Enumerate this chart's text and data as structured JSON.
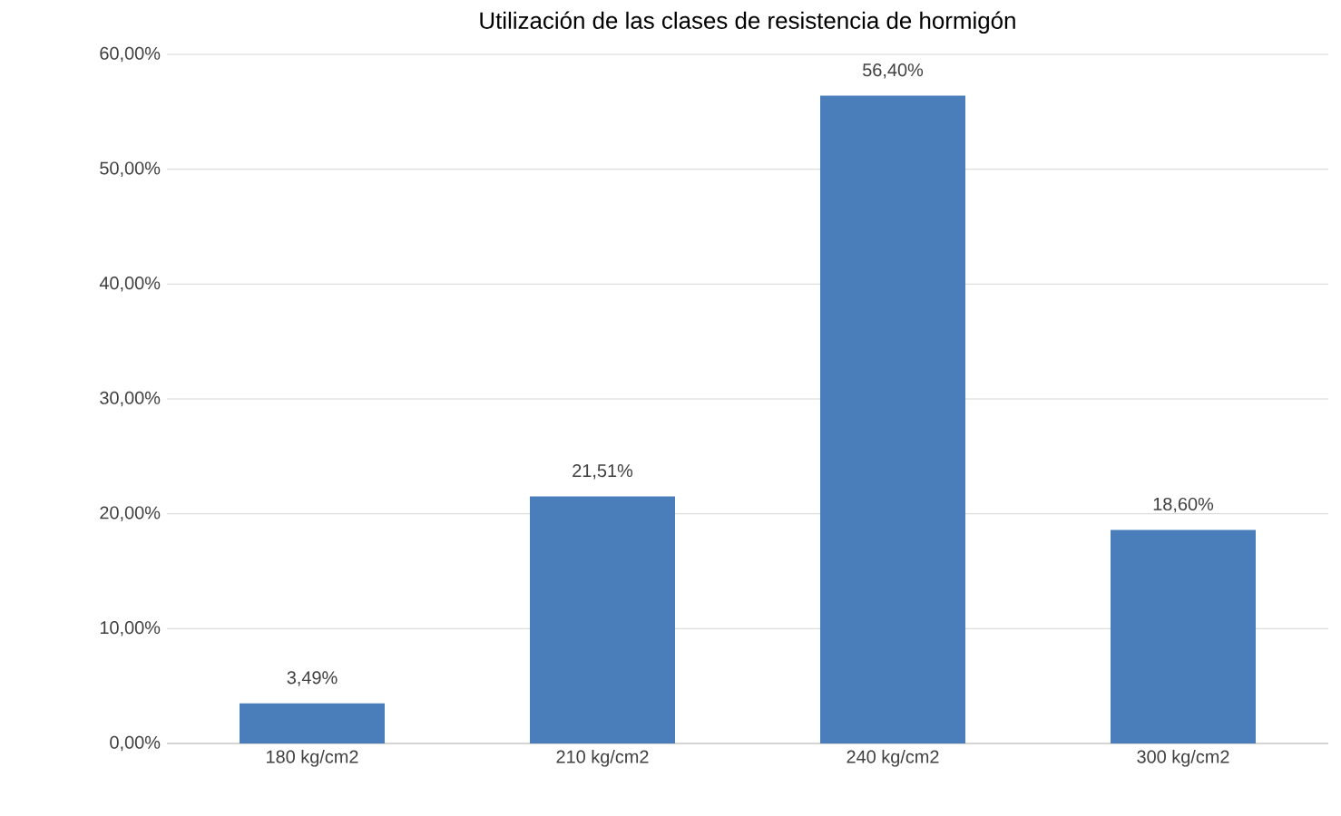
{
  "chart_data": {
    "type": "bar",
    "title": "Utilización de las clases de resistencia de hormigón",
    "categories": [
      "180 kg/cm2",
      "210 kg/cm2",
      "240 kg/cm2",
      "300 kg/cm2"
    ],
    "values": [
      3.49,
      21.51,
      56.4,
      18.6
    ],
    "value_labels": [
      "3,49%",
      "21,51%",
      "56,40%",
      "18,60%"
    ],
    "color": "#4a7ebb",
    "ylim": [
      0,
      60
    ],
    "yticks": [
      {
        "value": 0,
        "label": "0,00%"
      },
      {
        "value": 10,
        "label": "10,00%"
      },
      {
        "value": 20,
        "label": "20,00%"
      },
      {
        "value": 30,
        "label": "30,00%"
      },
      {
        "value": 40,
        "label": "40,00%"
      },
      {
        "value": 50,
        "label": "50,00%"
      },
      {
        "value": 60,
        "label": "60,00%"
      }
    ],
    "grid": "y"
  }
}
